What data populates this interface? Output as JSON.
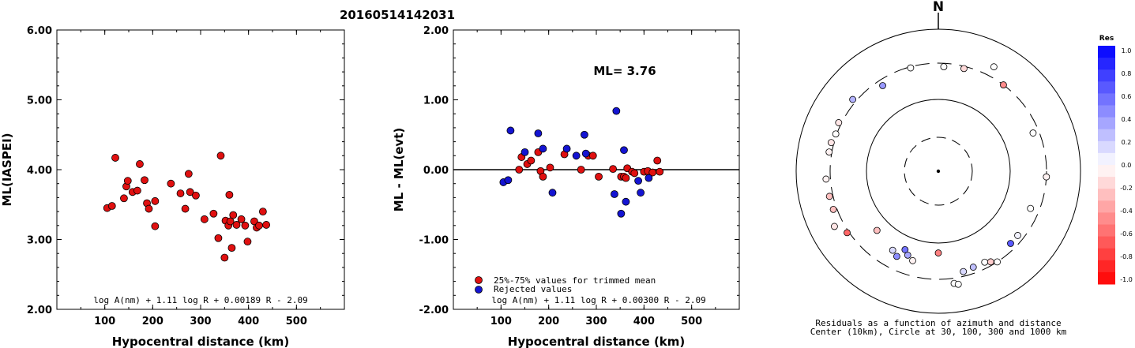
{
  "title": "20160514142031",
  "colors": {
    "red_marker": "#e01010",
    "blue_marker": "#1414d2",
    "black": "#000000"
  },
  "chart_data": [
    {
      "type": "scatter",
      "xlabel": "Hypocentral distance (km)",
      "ylabel": "ML(IASPEI)",
      "xlim": [
        0,
        600
      ],
      "ylim": [
        2.0,
        6.0
      ],
      "xticks": [
        "100",
        "200",
        "300",
        "400",
        "500"
      ],
      "yticks": [
        "2.00",
        "3.00",
        "4.00",
        "5.00",
        "6.00"
      ],
      "formula": "log A(nm) + 1.11 log R + 0.00189 R - 2.09",
      "points": [
        [
          105,
          3.45
        ],
        [
          115,
          3.48
        ],
        [
          122,
          4.17
        ],
        [
          140,
          3.59
        ],
        [
          145,
          3.76
        ],
        [
          148,
          3.84
        ],
        [
          158,
          3.68
        ],
        [
          168,
          3.7
        ],
        [
          173,
          4.08
        ],
        [
          183,
          3.85
        ],
        [
          188,
          3.52
        ],
        [
          192,
          3.44
        ],
        [
          205,
          3.55
        ],
        [
          205,
          3.19
        ],
        [
          238,
          3.8
        ],
        [
          258,
          3.66
        ],
        [
          268,
          3.44
        ],
        [
          275,
          3.94
        ],
        [
          278,
          3.68
        ],
        [
          290,
          3.63
        ],
        [
          308,
          3.29
        ],
        [
          327,
          3.37
        ],
        [
          337,
          3.02
        ],
        [
          342,
          4.2
        ],
        [
          350,
          2.74
        ],
        [
          352,
          3.27
        ],
        [
          358,
          3.2
        ],
        [
          360,
          3.64
        ],
        [
          362,
          3.26
        ],
        [
          365,
          2.88
        ],
        [
          368,
          3.35
        ],
        [
          375,
          3.21
        ],
        [
          385,
          3.29
        ],
        [
          393,
          3.2
        ],
        [
          398,
          2.97
        ],
        [
          412,
          3.26
        ],
        [
          417,
          3.17
        ],
        [
          422,
          3.2
        ],
        [
          430,
          3.4
        ],
        [
          437,
          3.21
        ]
      ]
    },
    {
      "type": "scatter",
      "xlabel": "Hypocentral distance (km)",
      "ylabel": "ML - ML(evt)",
      "xlim": [
        0,
        600
      ],
      "ylim": [
        -2.0,
        2.0
      ],
      "xticks": [
        "100",
        "200",
        "300",
        "400",
        "500"
      ],
      "yticks": [
        "-2.00",
        "-1.00",
        "0.00",
        "1.00",
        "2.00"
      ],
      "ml_label": "ML= 3.76",
      "formula": "log A(nm) + 1.11 log R + 0.00300 R - 2.09",
      "legend": [
        {
          "label": "25%-75% values for trimmed mean",
          "color": "#e01010"
        },
        {
          "label": "Rejected values",
          "color": "#1414d2"
        }
      ],
      "legend_position": "bottom-left",
      "reference_line": 0.0,
      "series": [
        {
          "kind": "trimmed",
          "points": [
            [
              138,
              0.0
            ],
            [
              143,
              0.18
            ],
            [
              155,
              0.08
            ],
            [
              163,
              0.13
            ],
            [
              178,
              0.25
            ],
            [
              183,
              -0.02
            ],
            [
              188,
              -0.1
            ],
            [
              203,
              0.03
            ],
            [
              233,
              0.22
            ],
            [
              268,
              0.0
            ],
            [
              283,
              0.2
            ],
            [
              293,
              0.2
            ],
            [
              305,
              -0.1
            ],
            [
              335,
              0.01
            ],
            [
              352,
              -0.1
            ],
            [
              358,
              -0.1
            ],
            [
              362,
              -0.12
            ],
            [
              365,
              0.02
            ],
            [
              375,
              -0.03
            ],
            [
              380,
              -0.05
            ],
            [
              400,
              -0.03
            ],
            [
              408,
              -0.02
            ],
            [
              418,
              -0.04
            ],
            [
              428,
              0.13
            ],
            [
              433,
              -0.03
            ]
          ]
        },
        {
          "kind": "rejected",
          "points": [
            [
              105,
              -0.18
            ],
            [
              115,
              -0.15
            ],
            [
              120,
              0.56
            ],
            [
              150,
              0.25
            ],
            [
              178,
              0.52
            ],
            [
              188,
              0.3
            ],
            [
              208,
              -0.33
            ],
            [
              238,
              0.3
            ],
            [
              258,
              0.2
            ],
            [
              275,
              0.5
            ],
            [
              278,
              0.23
            ],
            [
              338,
              -0.35
            ],
            [
              342,
              0.84
            ],
            [
              352,
              -0.63
            ],
            [
              358,
              0.28
            ],
            [
              362,
              -0.46
            ],
            [
              388,
              -0.16
            ],
            [
              393,
              -0.33
            ],
            [
              410,
              -0.12
            ]
          ]
        }
      ]
    },
    {
      "type": "scatter",
      "subtype": "polar-azimuth-distance",
      "north_label": "N",
      "caption_line1": "Residuals as a function of azimuth and distance",
      "caption_line2": "Center (10km), Circle at 30, 100, 300 and 1000 km",
      "colorbar_title": "Res",
      "colorbar_ticks": [
        "1.0",
        "0.8",
        "0.6",
        "0.4",
        "0.2",
        "0.0",
        "-0.2",
        "-0.4",
        "-0.6",
        "-0.8",
        "-1.0"
      ],
      "stations_azimuth_distance_residual": [
        [
          3,
          270,
          0.0
        ],
        [
          14,
          280,
          -0.15
        ],
        [
          28,
          430,
          0.0
        ],
        [
          37,
          300,
          -0.45
        ],
        [
          345,
          290,
          0.0
        ],
        [
          327,
          250,
          0.4
        ],
        [
          310,
          340,
          0.3
        ],
        [
          290,
          310,
          0.0
        ],
        [
          296,
          330,
          -0.1
        ],
        [
          285,
          330,
          -0.1
        ],
        [
          280,
          330,
          -0.05
        ],
        [
          266,
          350,
          -0.05
        ],
        [
          257,
          340,
          -0.25
        ],
        [
          250,
          340,
          -0.25
        ],
        [
          242,
          420,
          -0.1
        ],
        [
          236,
          320,
          -0.6
        ],
        [
          226,
          150,
          -0.25
        ],
        [
          203,
          150,
          0.55
        ],
        [
          210,
          180,
          0.15
        ],
        [
          206,
          200,
          0.45
        ],
        [
          200,
          170,
          0.35
        ],
        [
          196,
          190,
          -0.05
        ],
        [
          180,
          135,
          -0.5
        ],
        [
          172,
          360,
          0.0
        ],
        [
          170,
          380,
          0.0
        ],
        [
          166,
          260,
          0.15
        ],
        [
          160,
          250,
          0.25
        ],
        [
          153,
          250,
          0.0
        ],
        [
          150,
          270,
          -0.2
        ],
        [
          147,
          300,
          0.0
        ],
        [
          135,
          250,
          0.65
        ],
        [
          129,
          250,
          0.05
        ],
        [
          112,
          230,
          0.0
        ],
        [
          93,
          300,
          -0.05
        ],
        [
          68,
          250,
          0.0
        ]
      ]
    }
  ]
}
